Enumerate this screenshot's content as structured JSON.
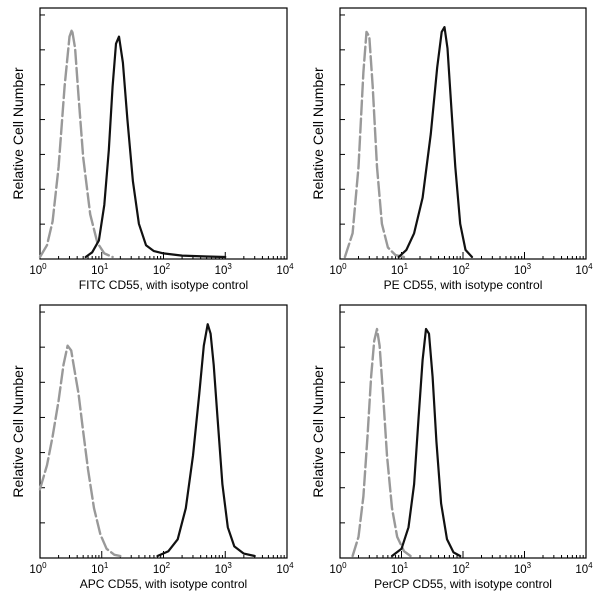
{
  "chart_data": [
    {
      "type": "line",
      "xlabel": "FITC  CD55,  with isotype control",
      "ylabel": "Relative Cell Number",
      "x_scale": "log",
      "xlim": [
        1,
        10000
      ],
      "x_ticks": [
        {
          "base": "10",
          "exp": "0"
        },
        {
          "base": "10",
          "exp": "1"
        },
        {
          "base": "10",
          "exp": "2"
        },
        {
          "base": "10",
          "exp": "3"
        },
        {
          "base": "10",
          "exp": "4"
        }
      ],
      "ylim": [
        0,
        1
      ],
      "y_tick_count": 7,
      "series": [
        {
          "style": "dashed",
          "color": "#999999",
          "x": [
            1.0,
            1.3,
            1.6,
            2.0,
            2.5,
            3.0,
            3.3,
            3.7,
            4.2,
            5.0,
            6.5,
            8.5,
            11,
            15
          ],
          "y": [
            0.0,
            0.05,
            0.15,
            0.38,
            0.72,
            0.93,
            0.96,
            0.88,
            0.68,
            0.42,
            0.18,
            0.06,
            0.015,
            0.0
          ]
        },
        {
          "style": "solid",
          "color": "#111111",
          "x": [
            5.5,
            7,
            9,
            11,
            13,
            15,
            17,
            19,
            22,
            26,
            32,
            40,
            52,
            70,
            100,
            200,
            500,
            1000
          ],
          "y": [
            0.0,
            0.02,
            0.07,
            0.22,
            0.45,
            0.72,
            0.9,
            0.93,
            0.82,
            0.58,
            0.32,
            0.14,
            0.05,
            0.025,
            0.015,
            0.006,
            0.002,
            0.0
          ]
        }
      ]
    },
    {
      "type": "line",
      "xlabel": "PE CD55,  with isotype control",
      "ylabel": "Relative Cell Number",
      "x_scale": "log",
      "xlim": [
        1,
        10000
      ],
      "x_ticks": [
        {
          "base": "10",
          "exp": "0"
        },
        {
          "base": "10",
          "exp": "1"
        },
        {
          "base": "10",
          "exp": "2"
        },
        {
          "base": "10",
          "exp": "3"
        },
        {
          "base": "10",
          "exp": "4"
        }
      ],
      "ylim": [
        0,
        1
      ],
      "y_tick_count": 7,
      "series": [
        {
          "style": "dashed",
          "color": "#999999",
          "x": [
            1.2,
            1.6,
            2.0,
            2.4,
            2.7,
            3.0,
            3.4,
            4.0,
            4.8,
            6.0,
            8.0,
            11
          ],
          "y": [
            0.0,
            0.1,
            0.38,
            0.78,
            0.95,
            0.93,
            0.72,
            0.38,
            0.14,
            0.04,
            0.008,
            0.0
          ]
        },
        {
          "style": "solid",
          "color": "#111111",
          "x": [
            9,
            12,
            16,
            22,
            30,
            38,
            45,
            50,
            56,
            65,
            75,
            90,
            110,
            140
          ],
          "y": [
            0.0,
            0.03,
            0.1,
            0.25,
            0.52,
            0.8,
            0.95,
            0.97,
            0.88,
            0.62,
            0.38,
            0.14,
            0.03,
            0.0
          ]
        }
      ]
    },
    {
      "type": "line",
      "xlabel": "APC CD55, with isotype control",
      "ylabel": "Relative Cell Number",
      "x_scale": "log",
      "xlim": [
        1,
        10000
      ],
      "x_ticks": [
        {
          "base": "10",
          "exp": "0"
        },
        {
          "base": "10",
          "exp": "1"
        },
        {
          "base": "10",
          "exp": "2"
        },
        {
          "base": "10",
          "exp": "3"
        },
        {
          "base": "10",
          "exp": "4"
        }
      ],
      "ylim": [
        0,
        1
      ],
      "y_tick_count": 7,
      "series": [
        {
          "style": "dashed",
          "color": "#999999",
          "x": [
            1.0,
            1.3,
            1.6,
            2.0,
            2.4,
            2.8,
            3.2,
            3.6,
            4.2,
            5.0,
            6.0,
            7.5,
            9.5,
            12,
            16,
            20
          ],
          "y": [
            0.28,
            0.38,
            0.5,
            0.65,
            0.8,
            0.88,
            0.86,
            0.78,
            0.68,
            0.52,
            0.36,
            0.2,
            0.09,
            0.03,
            0.005,
            0.0
          ]
        },
        {
          "style": "solid",
          "color": "#111111",
          "x": [
            80,
            120,
            170,
            230,
            300,
            380,
            450,
            520,
            580,
            650,
            750,
            900,
            1100,
            1400,
            2000,
            3000
          ],
          "y": [
            0.0,
            0.02,
            0.07,
            0.2,
            0.42,
            0.68,
            0.88,
            0.97,
            0.93,
            0.8,
            0.58,
            0.3,
            0.12,
            0.04,
            0.01,
            0.0
          ]
        }
      ]
    },
    {
      "type": "line",
      "xlabel": "PerCP CD55, with isotype control",
      "ylabel": "Relative Cell Number",
      "x_scale": "log",
      "xlim": [
        1,
        10000
      ],
      "x_ticks": [
        {
          "base": "10",
          "exp": "0"
        },
        {
          "base": "10",
          "exp": "1"
        },
        {
          "base": "10",
          "exp": "2"
        },
        {
          "base": "10",
          "exp": "3"
        },
        {
          "base": "10",
          "exp": "4"
        }
      ],
      "ylim": [
        0,
        1
      ],
      "y_tick_count": 7,
      "series": [
        {
          "style": "dashed",
          "color": "#999999",
          "x": [
            1.6,
            2.0,
            2.4,
            2.8,
            3.2,
            3.6,
            4.0,
            4.4,
            5.0,
            5.8,
            7.0,
            8.5,
            11,
            14
          ],
          "y": [
            0.0,
            0.08,
            0.25,
            0.5,
            0.75,
            0.9,
            0.95,
            0.88,
            0.68,
            0.42,
            0.2,
            0.08,
            0.02,
            0.0
          ]
        },
        {
          "style": "solid",
          "color": "#111111",
          "x": [
            7,
            10,
            13,
            16,
            19,
            22,
            25,
            28,
            32,
            37,
            44,
            55,
            70,
            90
          ],
          "y": [
            0.0,
            0.03,
            0.12,
            0.3,
            0.58,
            0.82,
            0.95,
            0.93,
            0.75,
            0.48,
            0.22,
            0.07,
            0.015,
            0.0
          ]
        }
      ]
    }
  ]
}
